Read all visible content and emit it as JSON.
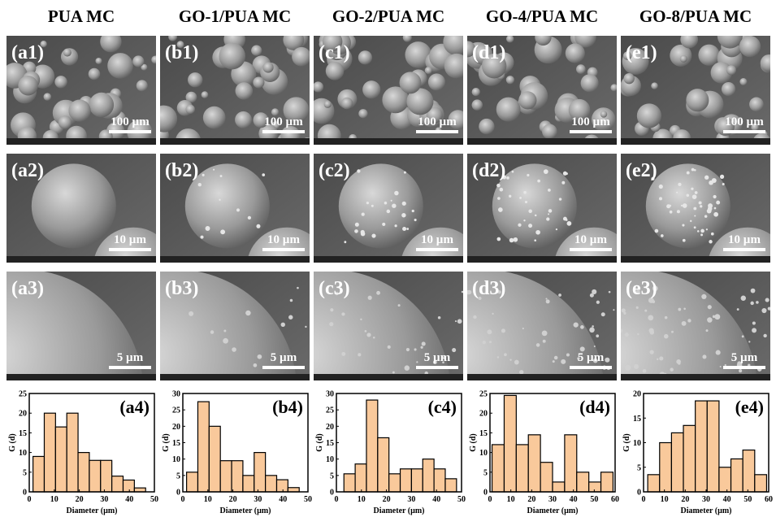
{
  "columns": [
    {
      "title": "PUA MC",
      "panels": [
        {
          "label": "(a1)",
          "scale": "100 µm"
        },
        {
          "label": "(a2)",
          "scale": "10 µm"
        },
        {
          "label": "(a3)",
          "scale": "5 µm"
        }
      ]
    },
    {
      "title": "GO-1/PUA MC",
      "panels": [
        {
          "label": "(b1)",
          "scale": "100 µm"
        },
        {
          "label": "(b2)",
          "scale": "10 µm"
        },
        {
          "label": "(b3)",
          "scale": "5 µm"
        }
      ]
    },
    {
      "title": "GO-2/PUA MC",
      "panels": [
        {
          "label": "(c1)",
          "scale": "100 µm"
        },
        {
          "label": "(c2)",
          "scale": "10 µm"
        },
        {
          "label": "(c3)",
          "scale": "5 µm"
        }
      ]
    },
    {
      "title": "GO-4/PUA MC",
      "panels": [
        {
          "label": "(d1)",
          "scale": "100 µm"
        },
        {
          "label": "(d2)",
          "scale": "10 µm"
        },
        {
          "label": "(d3)",
          "scale": "5 µm"
        }
      ]
    },
    {
      "title": "GO-8/PUA MC",
      "panels": [
        {
          "label": "(e1)",
          "scale": "100 µm"
        },
        {
          "label": "(e2)",
          "scale": "10 µm"
        },
        {
          "label": "(e3)",
          "scale": "5 µm"
        }
      ]
    }
  ],
  "chart_data": [
    {
      "type": "histogram",
      "label": "(a4)",
      "x_label": "Diameter (µm)",
      "y_label": "G (d)",
      "color": "#f9c99b",
      "bins": [
        1.5,
        6,
        10.5,
        15,
        19.5,
        24,
        28.5,
        33,
        37.5,
        42,
        46.5
      ],
      "values": [
        9,
        20,
        16.5,
        20,
        10,
        8,
        8,
        4,
        3,
        1
      ],
      "xlim": [
        0,
        50
      ],
      "xticks": [
        0,
        10,
        20,
        30,
        40,
        50
      ],
      "ylim": [
        0,
        25
      ],
      "yticks": [
        0,
        5,
        10,
        15,
        20,
        25
      ]
    },
    {
      "type": "histogram",
      "label": "(b4)",
      "x_label": "Diameter (µm)",
      "y_label": "G (d)",
      "color": "#f9c99b",
      "bins": [
        1.5,
        6,
        10.5,
        15,
        19.5,
        24,
        28.5,
        33,
        37.5,
        42,
        46.5
      ],
      "values": [
        6,
        27.5,
        20,
        9.5,
        9.5,
        5,
        12,
        5,
        3.7,
        1.3
      ],
      "xlim": [
        0,
        50
      ],
      "xticks": [
        0,
        10,
        20,
        30,
        40,
        50
      ],
      "ylim": [
        0,
        30
      ],
      "yticks": [
        0,
        5,
        10,
        15,
        20,
        25,
        30
      ]
    },
    {
      "type": "histogram",
      "label": "(c4)",
      "x_label": "Diameter (µm)",
      "y_label": "G (d)",
      "color": "#f9c99b",
      "bins": [
        3,
        7.5,
        12,
        16.5,
        21,
        25.5,
        30,
        34.5,
        39,
        43.5,
        48
      ],
      "values": [
        5.5,
        8.5,
        28,
        16.5,
        5.5,
        7,
        7,
        10,
        7,
        4
      ],
      "xlim": [
        0,
        50
      ],
      "xticks": [
        0,
        10,
        20,
        30,
        40,
        50
      ],
      "ylim": [
        0,
        30
      ],
      "yticks": [
        0,
        5,
        10,
        15,
        20,
        25,
        30
      ]
    },
    {
      "type": "histogram",
      "label": "(d4)",
      "x_label": "Diameter (µm)",
      "y_label": "G (d)",
      "color": "#f9c99b",
      "bins": [
        1,
        6.8,
        12.6,
        18.4,
        24.2,
        30,
        35.8,
        41.6,
        47.4,
        53.2,
        59
      ],
      "values": [
        12,
        24.5,
        12,
        14.5,
        7.5,
        2.5,
        14.5,
        5,
        2.5,
        5
      ],
      "xlim": [
        0,
        60
      ],
      "xticks": [
        0,
        10,
        20,
        30,
        40,
        50,
        60
      ],
      "ylim": [
        0,
        25
      ],
      "yticks": [
        0,
        5,
        10,
        15,
        20,
        25
      ]
    },
    {
      "type": "histogram",
      "label": "(e4)",
      "x_label": "Diameter (µm)",
      "y_label": "G (d)",
      "color": "#f9c99b",
      "bins": [
        2,
        7.7,
        13.4,
        19.1,
        24.8,
        30.5,
        36.2,
        41.9,
        47.6,
        53.3,
        59
      ],
      "values": [
        3.5,
        10,
        12,
        13.5,
        18.5,
        18.5,
        5,
        6.7,
        8.5,
        3.5
      ],
      "xlim": [
        0,
        60
      ],
      "xticks": [
        0,
        10,
        20,
        30,
        40,
        50,
        60
      ],
      "ylim": [
        0,
        20
      ],
      "yticks": [
        0,
        5,
        10,
        15,
        20
      ]
    }
  ]
}
